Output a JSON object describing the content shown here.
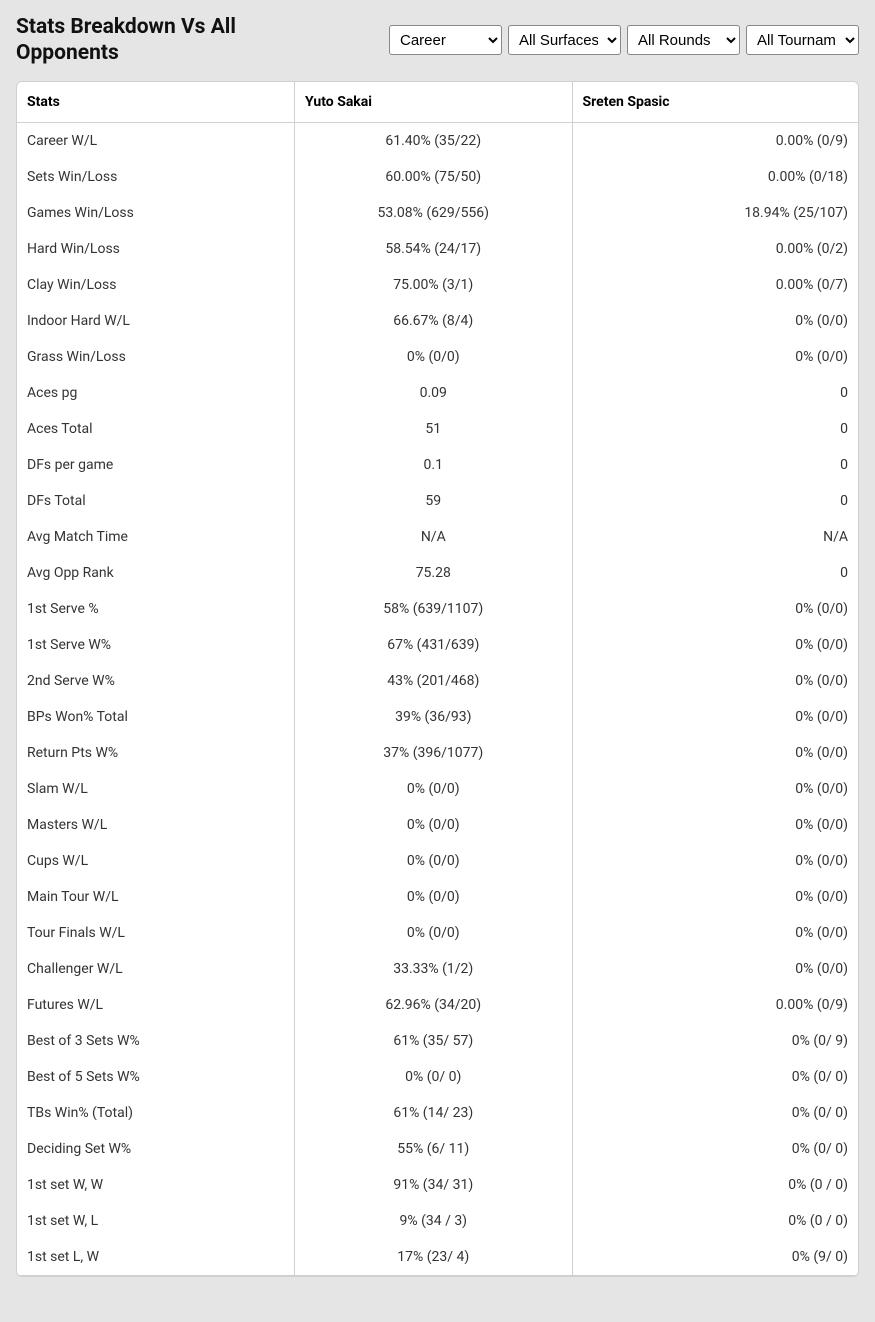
{
  "title": "Stats Breakdown Vs All Opponents",
  "filters": {
    "career": {
      "selected": "Career",
      "options": [
        "Career"
      ]
    },
    "surface": {
      "selected": "All Surfaces",
      "options": [
        "All Surfaces"
      ]
    },
    "rounds": {
      "selected": "All Rounds",
      "options": [
        "All Rounds"
      ]
    },
    "tournaments": {
      "selected": "All Tournaments",
      "options": [
        "All Tournaments"
      ]
    }
  },
  "columns": {
    "stats": "Stats",
    "player1": "Yuto Sakai",
    "player2": "Sreten Spasic"
  },
  "rows": [
    {
      "stat": "Career W/L",
      "p1": "61.40% (35/22)",
      "p2": "0.00% (0/9)"
    },
    {
      "stat": "Sets Win/Loss",
      "p1": "60.00% (75/50)",
      "p2": "0.00% (0/18)"
    },
    {
      "stat": "Games Win/Loss",
      "p1": "53.08% (629/556)",
      "p2": "18.94% (25/107)"
    },
    {
      "stat": "Hard Win/Loss",
      "p1": "58.54% (24/17)",
      "p2": "0.00% (0/2)"
    },
    {
      "stat": "Clay Win/Loss",
      "p1": "75.00% (3/1)",
      "p2": "0.00% (0/7)"
    },
    {
      "stat": "Indoor Hard W/L",
      "p1": "66.67% (8/4)",
      "p2": "0% (0/0)"
    },
    {
      "stat": "Grass Win/Loss",
      "p1": "0% (0/0)",
      "p2": "0% (0/0)"
    },
    {
      "stat": "Aces pg",
      "p1": "0.09",
      "p2": "0"
    },
    {
      "stat": "Aces Total",
      "p1": "51",
      "p2": "0"
    },
    {
      "stat": "DFs per game",
      "p1": "0.1",
      "p2": "0"
    },
    {
      "stat": "DFs Total",
      "p1": "59",
      "p2": "0"
    },
    {
      "stat": "Avg Match Time",
      "p1": "N/A",
      "p2": "N/A"
    },
    {
      "stat": "Avg Opp Rank",
      "p1": "75.28",
      "p2": "0"
    },
    {
      "stat": "1st Serve %",
      "p1": "58% (639/1107)",
      "p2": "0% (0/0)"
    },
    {
      "stat": "1st Serve W%",
      "p1": "67% (431/639)",
      "p2": "0% (0/0)"
    },
    {
      "stat": "2nd Serve W%",
      "p1": "43% (201/468)",
      "p2": "0% (0/0)"
    },
    {
      "stat": "BPs Won% Total",
      "p1": "39% (36/93)",
      "p2": "0% (0/0)"
    },
    {
      "stat": "Return Pts W%",
      "p1": "37% (396/1077)",
      "p2": "0% (0/0)"
    },
    {
      "stat": "Slam W/L",
      "p1": "0% (0/0)",
      "p2": "0% (0/0)"
    },
    {
      "stat": "Masters W/L",
      "p1": "0% (0/0)",
      "p2": "0% (0/0)"
    },
    {
      "stat": "Cups W/L",
      "p1": "0% (0/0)",
      "p2": "0% (0/0)"
    },
    {
      "stat": "Main Tour W/L",
      "p1": "0% (0/0)",
      "p2": "0% (0/0)"
    },
    {
      "stat": "Tour Finals W/L",
      "p1": "0% (0/0)",
      "p2": "0% (0/0)"
    },
    {
      "stat": "Challenger W/L",
      "p1": "33.33% (1/2)",
      "p2": "0% (0/0)"
    },
    {
      "stat": "Futures W/L",
      "p1": "62.96% (34/20)",
      "p2": "0.00% (0/9)"
    },
    {
      "stat": "Best of 3 Sets W%",
      "p1": "61% (35/ 57)",
      "p2": "0% (0/ 9)"
    },
    {
      "stat": "Best of 5 Sets W%",
      "p1": "0% (0/ 0)",
      "p2": "0% (0/ 0)"
    },
    {
      "stat": "TBs Win% (Total)",
      "p1": "61% (14/ 23)",
      "p2": "0% (0/ 0)"
    },
    {
      "stat": "Deciding Set W%",
      "p1": "55% (6/ 11)",
      "p2": "0% (0/ 0)"
    },
    {
      "stat": "1st set W, W",
      "p1": "91% (34/ 31)",
      "p2": "0% (0 / 0)"
    },
    {
      "stat": "1st set W, L",
      "p1": "9% (34 / 3)",
      "p2": "0% (0 / 0)"
    },
    {
      "stat": "1st set L, W",
      "p1": "17% (23/ 4)",
      "p2": "0% (9/ 0)"
    }
  ]
}
